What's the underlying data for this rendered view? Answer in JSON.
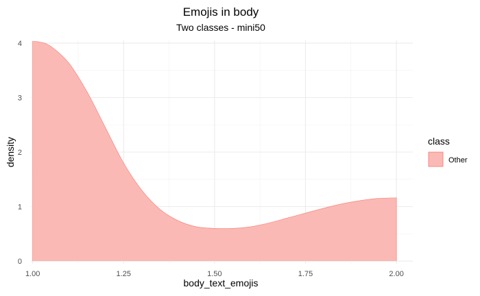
{
  "chart_data": {
    "type": "area",
    "title": "Emojis in body",
    "subtitle": "Two classes - mini50",
    "xlabel": "body_text_emojis",
    "ylabel": "density",
    "xlim": [
      0.995,
      2.045
    ],
    "ylim": [
      -0.05,
      4.05
    ],
    "x_ticks": [
      1.0,
      1.25,
      1.5,
      1.75,
      2.0
    ],
    "x_tick_labels": [
      "1.00",
      "1.25",
      "1.50",
      "1.75",
      "2.00"
    ],
    "y_ticks": [
      0,
      1,
      2,
      3,
      4
    ],
    "y_tick_labels": [
      "0",
      "1",
      "2",
      "3",
      "4"
    ],
    "grid": true,
    "legend": {
      "title": "class",
      "position": "right",
      "entries": [
        {
          "label": "Other",
          "color": "#F8766D"
        }
      ]
    },
    "series": [
      {
        "name": "Other",
        "fill_color": "#FBB9B5",
        "line_color": "#F8766D",
        "x": [
          1.0,
          1.02,
          1.05,
          1.1,
          1.15,
          1.2,
          1.25,
          1.3,
          1.35,
          1.4,
          1.45,
          1.5,
          1.55,
          1.6,
          1.65,
          1.7,
          1.75,
          1.8,
          1.85,
          1.9,
          1.95,
          2.0
        ],
        "y": [
          4.03,
          4.02,
          3.94,
          3.63,
          3.1,
          2.45,
          1.8,
          1.3,
          0.95,
          0.74,
          0.63,
          0.6,
          0.6,
          0.63,
          0.7,
          0.79,
          0.88,
          0.97,
          1.05,
          1.11,
          1.15,
          1.16
        ]
      }
    ]
  }
}
